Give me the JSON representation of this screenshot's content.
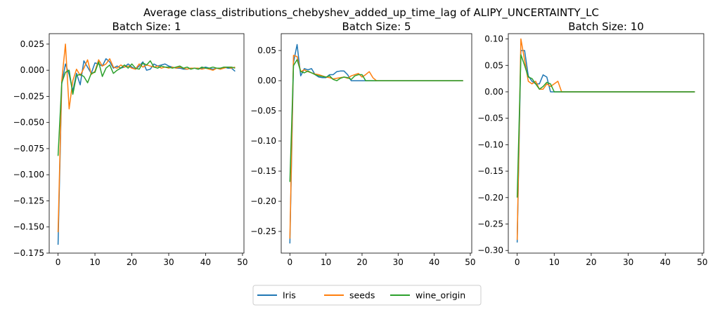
{
  "figure": {
    "suptitle": "Average class_distributions_chebyshev_added_up_time_lag of ALIPY_UNCERTAINTY_LC"
  },
  "legend": {
    "placement": "bottom-center",
    "items": [
      {
        "name": "Iris",
        "color": "#1f77b4"
      },
      {
        "name": "seeds",
        "color": "#ff7f0e"
      },
      {
        "name": "wine_origin",
        "color": "#2ca02c"
      }
    ]
  },
  "chart_data": [
    {
      "type": "line",
      "title": "Batch Size: 1",
      "xlim": [
        -2.4,
        50.4
      ],
      "ylim": [
        -0.175,
        0.035
      ],
      "xticks": [
        0,
        10,
        20,
        30,
        40,
        50
      ],
      "yticks": [
        -0.175,
        -0.15,
        -0.125,
        -0.1,
        -0.075,
        -0.05,
        -0.025,
        0.0,
        0.025
      ],
      "ytick_labels": [
        "−0.175",
        "−0.150",
        "−0.125",
        "−0.100",
        "−0.075",
        "−0.050",
        "−0.025",
        "0.000",
        "0.025"
      ],
      "x": [
        0,
        1,
        2,
        3,
        4,
        5,
        6,
        7,
        8,
        9,
        10,
        11,
        12,
        13,
        14,
        15,
        16,
        17,
        18,
        19,
        20,
        21,
        22,
        23,
        24,
        25,
        26,
        27,
        28,
        29,
        30,
        31,
        32,
        33,
        34,
        35,
        36,
        37,
        38,
        39,
        40,
        41,
        42,
        43,
        44,
        45,
        46,
        47,
        48
      ],
      "series": [
        {
          "name": "Iris",
          "color": "#1f77b4",
          "values": [
            -0.167,
            -0.013,
            0.006,
            -0.004,
            -0.02,
            -0.003,
            -0.014,
            0.009,
            0.003,
            -0.003,
            0.007,
            0.006,
            0.004,
            0.011,
            0.008,
            0.002,
            0.004,
            0.002,
            0.003,
            0.006,
            0.003,
            0.001,
            0.004,
            0.008,
            0.0,
            0.001,
            0.006,
            0.004,
            0.005,
            0.006,
            0.004,
            0.003,
            0.002,
            0.002,
            0.001,
            0.001,
            0.002,
            0.002,
            0.001,
            0.002,
            0.003,
            0.002,
            0.001,
            0.002,
            0.001,
            0.003,
            0.002,
            0.002,
            -0.001
          ]
        },
        {
          "name": "seeds",
          "color": "#ff7f0e",
          "values": [
            -0.155,
            -0.01,
            0.025,
            -0.037,
            -0.01,
            0.001,
            -0.005,
            0.002,
            0.01,
            -0.004,
            -0.001,
            0.01,
            0.004,
            0.006,
            0.011,
            0.003,
            0.002,
            0.005,
            0.003,
            0.004,
            0.002,
            0.001,
            0.006,
            0.003,
            0.005,
            0.004,
            0.003,
            0.004,
            0.002,
            0.003,
            0.002,
            0.003,
            0.002,
            0.003,
            0.002,
            0.001,
            0.002,
            0.002,
            0.002,
            0.001,
            0.002,
            0.001,
            0.0,
            0.002,
            0.001,
            0.002,
            0.003,
            0.002,
            0.003
          ]
        },
        {
          "name": "wine_origin",
          "color": "#2ca02c",
          "values": [
            -0.082,
            -0.012,
            -0.002,
            0.0,
            -0.023,
            -0.005,
            -0.004,
            -0.006,
            -0.012,
            -0.003,
            -0.002,
            0.008,
            -0.006,
            0.002,
            0.005,
            -0.003,
            0.0,
            0.002,
            0.005,
            0.002,
            0.006,
            0.002,
            0.001,
            0.007,
            0.005,
            0.009,
            0.003,
            0.002,
            0.004,
            0.003,
            0.003,
            0.002,
            0.003,
            0.004,
            0.002,
            0.003,
            0.001,
            0.002,
            0.001,
            0.003,
            0.002,
            0.002,
            0.003,
            0.002,
            0.002,
            0.003,
            0.003,
            0.003,
            0.002
          ]
        }
      ]
    },
    {
      "type": "line",
      "title": "Batch Size: 5",
      "xlim": [
        -2.4,
        50.4
      ],
      "ylim": [
        -0.286,
        0.078
      ],
      "xticks": [
        0,
        10,
        20,
        30,
        40,
        50
      ],
      "yticks": [
        -0.25,
        -0.2,
        -0.15,
        -0.1,
        -0.05,
        0.0,
        0.05
      ],
      "ytick_labels": [
        "−0.25",
        "−0.20",
        "−0.15",
        "−0.10",
        "−0.05",
        "0.00",
        "0.05"
      ],
      "x": [
        0,
        1,
        2,
        3,
        4,
        5,
        6,
        7,
        8,
        9,
        10,
        11,
        12,
        13,
        14,
        15,
        16,
        17,
        18,
        19,
        20,
        21,
        22,
        23,
        24,
        25,
        26,
        27,
        28,
        29,
        30,
        31,
        32,
        33,
        34,
        35,
        36,
        37,
        38,
        39,
        40,
        41,
        42,
        43,
        44,
        45,
        46,
        47,
        48
      ],
      "series": [
        {
          "name": "Iris",
          "color": "#1f77b4",
          "values": [
            -0.27,
            0.03,
            0.06,
            0.008,
            0.02,
            0.018,
            0.02,
            0.01,
            0.006,
            0.005,
            0.005,
            0.01,
            0.01,
            0.015,
            0.016,
            0.016,
            0.01,
            0.0,
            0.0,
            0.0,
            0.0,
            0.0,
            0.0,
            0.0,
            0.0,
            0.0,
            0.0,
            0.0,
            0.0,
            0.0,
            0.0,
            0.0,
            0.0,
            0.0,
            0.0,
            0.0,
            0.0,
            0.0,
            0.0,
            0.0,
            0.0,
            0.0,
            0.0,
            0.0,
            0.0,
            0.0,
            0.0,
            0.0,
            0.0
          ]
        },
        {
          "name": "seeds",
          "color": "#ff7f0e",
          "values": [
            -0.262,
            0.042,
            0.04,
            0.015,
            0.018,
            0.015,
            0.013,
            0.011,
            0.01,
            0.008,
            0.006,
            0.005,
            0.003,
            0.004,
            0.005,
            0.006,
            0.004,
            0.008,
            0.01,
            0.012,
            0.006,
            0.01,
            0.015,
            0.005,
            0.0,
            0.0,
            0.0,
            0.0,
            0.0,
            0.0,
            0.0,
            0.0,
            0.0,
            0.0,
            0.0,
            0.0,
            0.0,
            0.0,
            0.0,
            0.0,
            0.0,
            0.0,
            0.0,
            0.0,
            0.0,
            0.0,
            0.0,
            0.0,
            0.0
          ]
        },
        {
          "name": "wine_origin",
          "color": "#2ca02c",
          "values": [
            -0.168,
            0.025,
            0.035,
            0.015,
            0.013,
            0.016,
            0.013,
            0.01,
            0.008,
            0.007,
            0.006,
            0.008,
            0.002,
            0.0,
            0.004,
            0.006,
            0.005,
            0.002,
            0.008,
            0.01,
            0.01,
            0.0,
            0.0,
            0.0,
            0.0,
            0.0,
            0.0,
            0.0,
            0.0,
            0.0,
            0.0,
            0.0,
            0.0,
            0.0,
            0.0,
            0.0,
            0.0,
            0.0,
            0.0,
            0.0,
            0.0,
            0.0,
            0.0,
            0.0,
            0.0,
            0.0,
            0.0,
            0.0,
            0.0
          ]
        }
      ]
    },
    {
      "type": "line",
      "title": "Batch Size: 10",
      "xlim": [
        -2.4,
        50.4
      ],
      "ylim": [
        -0.305,
        0.11
      ],
      "xticks": [
        0,
        10,
        20,
        30,
        40,
        50
      ],
      "yticks": [
        -0.3,
        -0.25,
        -0.2,
        -0.15,
        -0.1,
        -0.05,
        0.0,
        0.05,
        0.1
      ],
      "ytick_labels": [
        "−0.30",
        "−0.25",
        "−0.20",
        "−0.15",
        "−0.10",
        "−0.05",
        "0.00",
        "0.05",
        "0.10"
      ],
      "x": [
        0,
        1,
        2,
        3,
        4,
        5,
        6,
        7,
        8,
        9,
        10,
        11,
        12,
        13,
        14,
        15,
        16,
        17,
        18,
        19,
        20,
        21,
        22,
        23,
        24,
        25,
        26,
        27,
        28,
        29,
        30,
        31,
        32,
        33,
        34,
        35,
        36,
        37,
        38,
        39,
        40,
        41,
        42,
        43,
        44,
        45,
        46,
        47,
        48
      ],
      "series": [
        {
          "name": "Iris",
          "color": "#1f77b4",
          "values": [
            -0.285,
            0.078,
            0.078,
            0.03,
            0.02,
            0.015,
            0.015,
            0.032,
            0.028,
            0.0,
            0.0,
            0.0,
            0.0,
            0.0,
            0.0,
            0.0,
            0.0,
            0.0,
            0.0,
            0.0,
            0.0,
            0.0,
            0.0,
            0.0,
            0.0,
            0.0,
            0.0,
            0.0,
            0.0,
            0.0,
            0.0,
            0.0,
            0.0,
            0.0,
            0.0,
            0.0,
            0.0,
            0.0,
            0.0,
            0.0,
            0.0,
            0.0,
            0.0,
            0.0,
            0.0,
            0.0,
            0.0,
            0.0,
            0.0
          ]
        },
        {
          "name": "seeds",
          "color": "#ff7f0e",
          "values": [
            -0.28,
            0.1,
            0.06,
            0.02,
            0.015,
            0.02,
            0.005,
            0.005,
            0.015,
            0.01,
            0.015,
            0.02,
            0.0,
            0.0,
            0.0,
            0.0,
            0.0,
            0.0,
            0.0,
            0.0,
            0.0,
            0.0,
            0.0,
            0.0,
            0.0,
            0.0,
            0.0,
            0.0,
            0.0,
            0.0,
            0.0,
            0.0,
            0.0,
            0.0,
            0.0,
            0.0,
            0.0,
            0.0,
            0.0,
            0.0,
            0.0,
            0.0,
            0.0,
            0.0,
            0.0,
            0.0,
            0.0,
            0.0,
            0.0
          ]
        },
        {
          "name": "wine_origin",
          "color": "#2ca02c",
          "values": [
            -0.2,
            0.07,
            0.05,
            0.028,
            0.025,
            0.015,
            0.005,
            0.01,
            0.018,
            0.015,
            0.0,
            0.0,
            0.0,
            0.0,
            0.0,
            0.0,
            0.0,
            0.0,
            0.0,
            0.0,
            0.0,
            0.0,
            0.0,
            0.0,
            0.0,
            0.0,
            0.0,
            0.0,
            0.0,
            0.0,
            0.0,
            0.0,
            0.0,
            0.0,
            0.0,
            0.0,
            0.0,
            0.0,
            0.0,
            0.0,
            0.0,
            0.0,
            0.0,
            0.0,
            0.0,
            0.0,
            0.0,
            0.0,
            0.0
          ]
        }
      ]
    }
  ]
}
